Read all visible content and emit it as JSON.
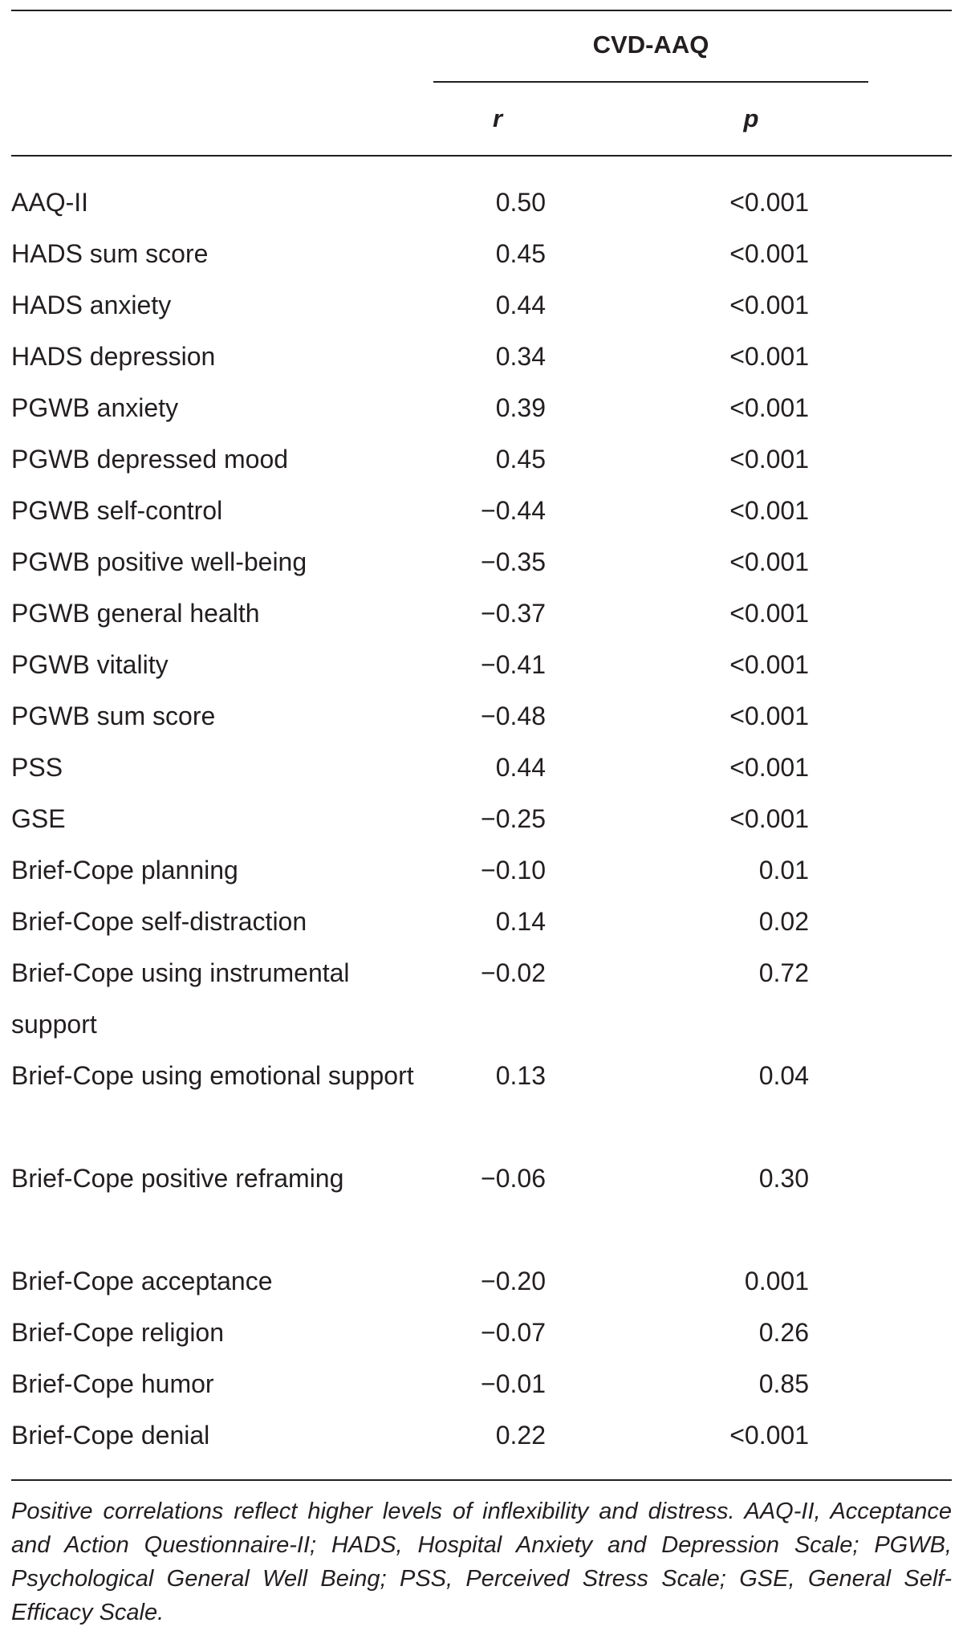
{
  "table": {
    "group_header": "CVD-AAQ",
    "columns": {
      "r": "r",
      "p": "p"
    },
    "rows": [
      {
        "label": "AAQ-II",
        "r": "0.50",
        "p": "<0.001"
      },
      {
        "label": "HADS sum score",
        "r": "0.45",
        "p": "<0.001"
      },
      {
        "label": "HADS anxiety",
        "r": "0.44",
        "p": "<0.001"
      },
      {
        "label": "HADS depression",
        "r": "0.34",
        "p": "<0.001"
      },
      {
        "label": "PGWB anxiety",
        "r": "0.39",
        "p": "<0.001"
      },
      {
        "label": "PGWB depressed mood",
        "r": "0.45",
        "p": "<0.001"
      },
      {
        "label": "PGWB self-control",
        "r": "−0.44",
        "p": "<0.001"
      },
      {
        "label": "PGWB positive well-being",
        "r": "−0.35",
        "p": "<0.001"
      },
      {
        "label": "PGWB general health",
        "r": "−0.37",
        "p": "<0.001"
      },
      {
        "label": "PGWB vitality",
        "r": "−0.41",
        "p": "<0.001"
      },
      {
        "label": "PGWB sum score",
        "r": "−0.48",
        "p": "<0.001"
      },
      {
        "label": "PSS",
        "r": "0.44",
        "p": "<0.001"
      },
      {
        "label": "GSE",
        "r": "−0.25",
        "p": "<0.001"
      },
      {
        "label": "Brief-Cope planning",
        "r": "−0.10",
        "p": "0.01"
      },
      {
        "label": "Brief-Cope self-distraction",
        "r": "0.14",
        "p": "0.02"
      },
      {
        "label": "Brief-Cope using instrumental support",
        "r": "−0.02",
        "p": "0.72"
      },
      {
        "label": "Brief-Cope using emotional support",
        "r": "0.13",
        "p": "0.04"
      },
      {
        "label": "Brief-Cope positive reframing",
        "r": "−0.06",
        "p": "0.30"
      },
      {
        "label": "Brief-Cope acceptance",
        "r": "−0.20",
        "p": "0.001"
      },
      {
        "label": "Brief-Cope religion",
        "r": "−0.07",
        "p": "0.26"
      },
      {
        "label": "Brief-Cope humor",
        "r": "−0.01",
        "p": "0.85"
      },
      {
        "label": "Brief-Cope denial",
        "r": "0.22",
        "p": "<0.001"
      }
    ],
    "footnote": "Positive correlations reflect higher levels of inflexibility and distress. AAQ-II, Acceptance and Action Questionnaire-II; HADS, Hospital Anxiety and Depression Scale; PGWB, Psychological General Well Being; PSS, Perceived Stress Scale; GSE, General Self-Efficacy Scale."
  }
}
